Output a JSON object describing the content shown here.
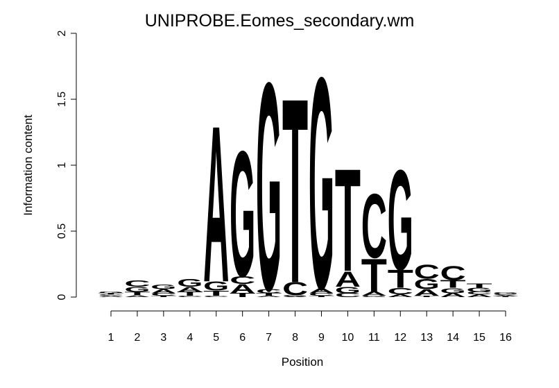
{
  "chart_data": {
    "type": "logo",
    "title": "UNIPROBE.Eomes_secondary.wm",
    "xlabel": "Position",
    "ylabel": "Information content",
    "categories": [
      "1",
      "2",
      "3",
      "4",
      "5",
      "6",
      "7",
      "8",
      "9",
      "10",
      "11",
      "12",
      "13",
      "14",
      "15",
      "16"
    ],
    "colors": {
      "A": "#00ee00",
      "C": "#0000ee",
      "G": "#ffa500",
      "T": "#ff0000"
    },
    "ylim": [
      0,
      2
    ],
    "yticks": [
      0,
      0.5,
      1,
      1.5,
      2
    ],
    "stacks": [
      [
        {
          "letter": "A",
          "value": 0.01
        },
        {
          "letter": "C",
          "value": 0.01
        },
        {
          "letter": "T",
          "value": 0.01
        },
        {
          "letter": "G",
          "value": 0.015
        }
      ],
      [
        {
          "letter": "A",
          "value": 0.015
        },
        {
          "letter": "T",
          "value": 0.025
        },
        {
          "letter": "G",
          "value": 0.04
        },
        {
          "letter": "C",
          "value": 0.05
        }
      ],
      [
        {
          "letter": "T",
          "value": 0.01
        },
        {
          "letter": "C",
          "value": 0.02
        },
        {
          "letter": "A",
          "value": 0.03
        },
        {
          "letter": "G",
          "value": 0.035
        }
      ],
      [
        {
          "letter": "C",
          "value": 0.01
        },
        {
          "letter": "T",
          "value": 0.03
        },
        {
          "letter": "A",
          "value": 0.04
        },
        {
          "letter": "G",
          "value": 0.06
        }
      ],
      [
        {
          "letter": "C",
          "value": 0.01
        },
        {
          "letter": "T",
          "value": 0.04
        },
        {
          "letter": "G",
          "value": 0.07
        },
        {
          "letter": "A",
          "value": 1.22
        }
      ],
      [
        {
          "letter": "T",
          "value": 0.03
        },
        {
          "letter": "A",
          "value": 0.07
        },
        {
          "letter": "C",
          "value": 0.06
        },
        {
          "letter": "G",
          "value": 0.98
        }
      ],
      [
        {
          "letter": "A",
          "value": 0.01
        },
        {
          "letter": "T",
          "value": 0.02
        },
        {
          "letter": "C",
          "value": 0.03
        },
        {
          "letter": "G",
          "value": 1.62
        }
      ],
      [
        {
          "letter": "A",
          "value": 0.005
        },
        {
          "letter": "G",
          "value": 0.01
        },
        {
          "letter": "C",
          "value": 0.1
        },
        {
          "letter": "T",
          "value": 1.44
        }
      ],
      [
        {
          "letter": "T",
          "value": 0.01
        },
        {
          "letter": "C",
          "value": 0.02
        },
        {
          "letter": "A",
          "value": 0.04
        },
        {
          "letter": "G",
          "value": 1.65
        }
      ],
      [
        {
          "letter": "C",
          "value": 0.03
        },
        {
          "letter": "G",
          "value": 0.05
        },
        {
          "letter": "A",
          "value": 0.12
        },
        {
          "letter": "T",
          "value": 0.8
        }
      ],
      [
        {
          "letter": "G",
          "value": 0.01
        },
        {
          "letter": "A",
          "value": 0.03
        },
        {
          "letter": "T",
          "value": 0.26
        },
        {
          "letter": "C",
          "value": 0.5
        }
      ],
      [
        {
          "letter": "A",
          "value": 0.02
        },
        {
          "letter": "C",
          "value": 0.05
        },
        {
          "letter": "T",
          "value": 0.14
        },
        {
          "letter": "G",
          "value": 0.78
        }
      ],
      [
        {
          "letter": "T",
          "value": 0.01
        },
        {
          "letter": "A",
          "value": 0.05
        },
        {
          "letter": "G",
          "value": 0.08
        },
        {
          "letter": "C",
          "value": 0.11
        }
      ],
      [
        {
          "letter": "A",
          "value": 0.03
        },
        {
          "letter": "G",
          "value": 0.04
        },
        {
          "letter": "T",
          "value": 0.06
        },
        {
          "letter": "C",
          "value": 0.11
        }
      ],
      [
        {
          "letter": "A",
          "value": 0.02
        },
        {
          "letter": "C",
          "value": 0.02
        },
        {
          "letter": "G",
          "value": 0.03
        },
        {
          "letter": "T",
          "value": 0.03
        }
      ],
      [
        {
          "letter": "T",
          "value": 0.005
        },
        {
          "letter": "A",
          "value": 0.01
        },
        {
          "letter": "C",
          "value": 0.01
        },
        {
          "letter": "G",
          "value": 0.015
        }
      ]
    ]
  }
}
